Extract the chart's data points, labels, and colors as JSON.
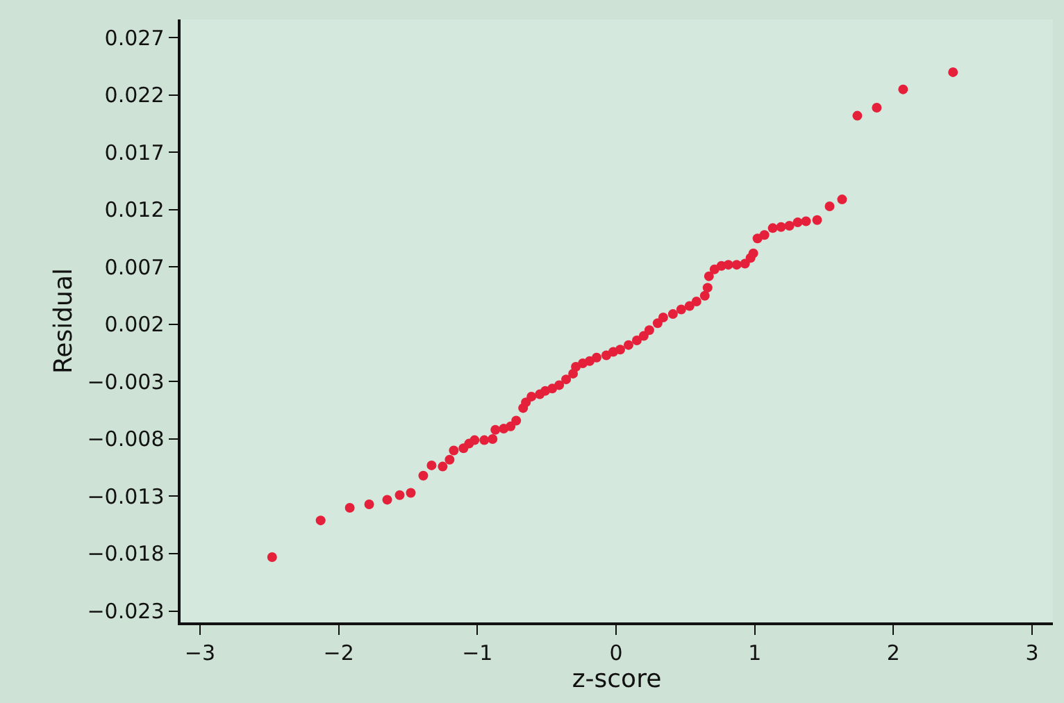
{
  "chart_data": {
    "type": "scatter",
    "xlabel": "z-score",
    "ylabel": "Residual",
    "x": [
      -2.48,
      -2.13,
      -1.92,
      -1.78,
      -1.65,
      -1.56,
      -1.48,
      -1.39,
      -1.33,
      -1.25,
      -1.2,
      -1.17,
      -1.1,
      -1.06,
      -1.02,
      -0.95,
      -0.89,
      -0.87,
      -0.81,
      -0.76,
      -0.72,
      -0.67,
      -0.65,
      -0.61,
      -0.55,
      -0.51,
      -0.46,
      -0.41,
      -0.36,
      -0.31,
      -0.29,
      -0.24,
      -0.19,
      -0.14,
      -0.07,
      -0.02,
      0.03,
      0.09,
      0.15,
      0.2,
      0.24,
      0.3,
      0.34,
      0.41,
      0.47,
      0.53,
      0.58,
      0.64,
      0.66,
      0.67,
      0.71,
      0.76,
      0.81,
      0.87,
      0.93,
      0.97,
      0.99,
      1.02,
      1.07,
      1.13,
      1.19,
      1.25,
      1.31,
      1.37,
      1.45,
      1.54,
      1.63,
      1.74,
      1.88,
      2.07,
      2.43
    ],
    "series": [
      {
        "color": "#e5203a",
        "values": [
          -0.0183,
          -0.0151,
          -0.014,
          -0.0137,
          -0.0133,
          -0.0129,
          -0.0127,
          -0.0112,
          -0.0103,
          -0.0104,
          -0.0098,
          -0.009,
          -0.0088,
          -0.0084,
          -0.0081,
          -0.0081,
          -0.008,
          -0.0072,
          -0.0071,
          -0.0069,
          -0.0064,
          -0.0053,
          -0.0048,
          -0.0043,
          -0.0041,
          -0.0038,
          -0.0036,
          -0.0033,
          -0.0028,
          -0.0023,
          -0.0017,
          -0.0014,
          -0.0012,
          -0.0009,
          -0.0007,
          -0.0004,
          -0.0002,
          0.0002,
          0.0006,
          0.001,
          0.0015,
          0.0021,
          0.0026,
          0.0029,
          0.0033,
          0.0036,
          0.004,
          0.0045,
          0.0052,
          0.0062,
          0.0068,
          0.0071,
          0.0072,
          0.0072,
          0.0073,
          0.0078,
          0.0082,
          0.0095,
          0.0098,
          0.0104,
          0.0105,
          0.0106,
          0.0109,
          0.011,
          0.0111,
          0.0123,
          0.0129,
          0.0202,
          0.0209,
          0.0225,
          0.024
        ]
      }
    ],
    "marker": "circle",
    "xlim": [
      -3.14,
      3.15
    ],
    "xticks": [
      {
        "value": -3,
        "label": "−3"
      },
      {
        "value": -2,
        "label": "−2"
      },
      {
        "value": -1,
        "label": "−1"
      },
      0,
      1,
      2,
      3
    ],
    "ylim": [
      -0.024,
      0.0286
    ],
    "yticks": [
      {
        "value": -0.023,
        "label": "−0.023"
      },
      {
        "value": -0.018,
        "label": "−0.018"
      },
      {
        "value": -0.013,
        "label": "−0.013"
      },
      {
        "value": -0.008,
        "label": "−0.008"
      },
      {
        "value": -0.003,
        "label": "−0.003"
      },
      {
        "value": 0.002,
        "label": "0.002"
      },
      {
        "value": 0.007,
        "label": "0.007"
      },
      {
        "value": 0.012,
        "label": "0.012"
      },
      {
        "value": 0.017,
        "label": "0.017"
      },
      {
        "value": 0.022,
        "label": "0.022"
      },
      {
        "value": 0.027,
        "label": "0.027"
      }
    ],
    "grid": false
  }
}
